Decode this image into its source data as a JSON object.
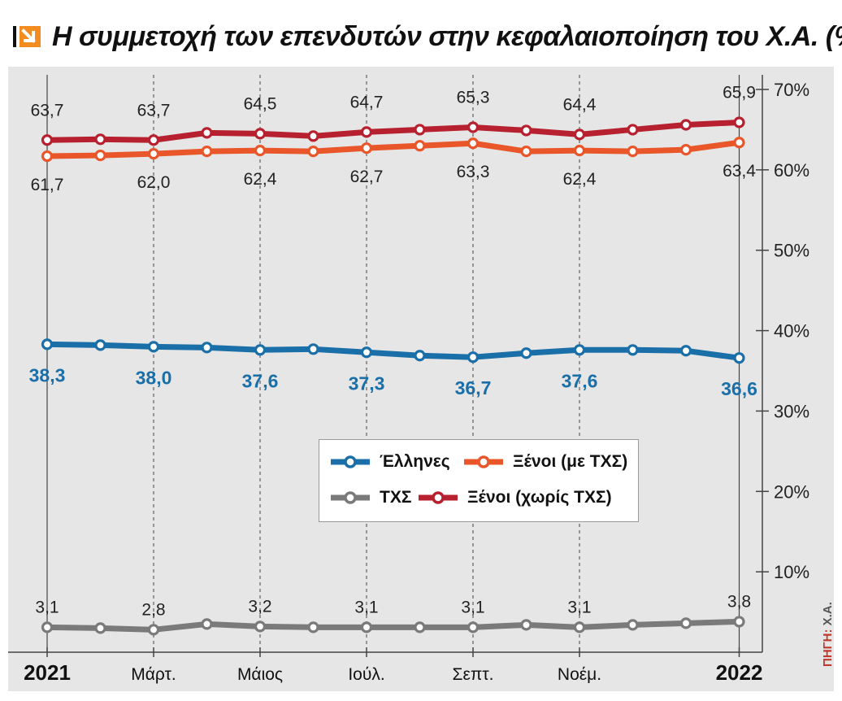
{
  "title": "Η συμμετοχή των επενδυτών στην κεφαλαιοποίηση του Χ.Α. (%)",
  "source": {
    "label": "ΠΗΓΗ:",
    "value": "Χ.Α."
  },
  "icon": "arrow-down-right-icon",
  "colors": {
    "greeks": "#1a6fa8",
    "foreign_with": "#e8562a",
    "foreign_without": "#b7212f",
    "txs": "#7a7a7a",
    "background": "#e6e6e6",
    "label_blue": "#1a6fa8",
    "title_icon": "#f28c1e"
  },
  "chart_data": {
    "type": "line",
    "title": "Η συμμετοχή των επενδυτών στην κεφαλαιοποίηση του Χ.Α. (%)",
    "ylim": [
      0,
      70
    ],
    "y_ticks": [
      "10%",
      "20%",
      "30%",
      "40%",
      "50%",
      "60%",
      "70%"
    ],
    "y_tick_values": [
      10,
      20,
      30,
      40,
      50,
      60,
      70
    ],
    "x_ticks": [
      {
        "index": 0,
        "label": "2021",
        "bold": true
      },
      {
        "index": 2,
        "label": "Μάρτ.",
        "bold": false
      },
      {
        "index": 4,
        "label": "Μάιος",
        "bold": false
      },
      {
        "index": 6,
        "label": "Ιούλ.",
        "bold": false
      },
      {
        "index": 8,
        "label": "Σεπτ.",
        "bold": false
      },
      {
        "index": 10,
        "label": "Νοέμ.",
        "bold": false
      },
      {
        "index": 13,
        "label": "2022",
        "bold": true
      }
    ],
    "grid": "vertical dashed at labeled months",
    "series": [
      {
        "name": "Ξένοι (χωρίς ΤΧΣ)",
        "key": "foreign_without",
        "values": [
          63.7,
          63.8,
          63.7,
          64.6,
          64.5,
          64.2,
          64.7,
          65.0,
          65.3,
          64.9,
          64.4,
          65.0,
          65.6,
          65.9
        ],
        "labels": [
          {
            "index": 0,
            "text": "63,7"
          },
          {
            "index": 2,
            "text": "63,7"
          },
          {
            "index": 4,
            "text": "64,5"
          },
          {
            "index": 6,
            "text": "64,7"
          },
          {
            "index": 8,
            "text": "65,3"
          },
          {
            "index": 10,
            "text": "64,4"
          },
          {
            "index": 13,
            "text": "65,9"
          }
        ]
      },
      {
        "name": "Ξένοι (με ΤΧΣ)",
        "key": "foreign_with",
        "values": [
          61.7,
          61.8,
          62.0,
          62.3,
          62.4,
          62.3,
          62.7,
          63.0,
          63.3,
          62.3,
          62.4,
          62.3,
          62.5,
          63.4
        ],
        "labels": [
          {
            "index": 0,
            "text": "61,7"
          },
          {
            "index": 2,
            "text": "62,0"
          },
          {
            "index": 4,
            "text": "62,4"
          },
          {
            "index": 6,
            "text": "62,7"
          },
          {
            "index": 8,
            "text": "63,3"
          },
          {
            "index": 10,
            "text": "62,4"
          },
          {
            "index": 13,
            "text": "63,4"
          }
        ]
      },
      {
        "name": "Έλληνες",
        "key": "greeks",
        "values": [
          38.3,
          38.2,
          38.0,
          37.9,
          37.6,
          37.7,
          37.3,
          36.9,
          36.7,
          37.2,
          37.6,
          37.6,
          37.5,
          36.6
        ],
        "labels": [
          {
            "index": 0,
            "text": "38,3"
          },
          {
            "index": 2,
            "text": "38,0"
          },
          {
            "index": 4,
            "text": "37,6"
          },
          {
            "index": 6,
            "text": "37,3"
          },
          {
            "index": 8,
            "text": "36,7"
          },
          {
            "index": 10,
            "text": "37,6"
          },
          {
            "index": 13,
            "text": "36,6"
          }
        ]
      },
      {
        "name": "ΤΧΣ",
        "key": "txs",
        "values": [
          3.1,
          3.0,
          2.8,
          3.5,
          3.2,
          3.1,
          3.1,
          3.1,
          3.1,
          3.4,
          3.1,
          3.4,
          3.6,
          3.8
        ],
        "labels": [
          {
            "index": 0,
            "text": "3,1"
          },
          {
            "index": 2,
            "text": "2,8"
          },
          {
            "index": 4,
            "text": "3,2"
          },
          {
            "index": 6,
            "text": "3,1"
          },
          {
            "index": 8,
            "text": "3,1"
          },
          {
            "index": 10,
            "text": "3,1"
          },
          {
            "index": 13,
            "text": "3,8"
          }
        ]
      }
    ],
    "legend": [
      {
        "label": "Έλληνες",
        "key": "greeks"
      },
      {
        "label": "Ξένοι (με ΤΧΣ)",
        "key": "foreign_with"
      },
      {
        "label": "ΤΧΣ",
        "key": "txs"
      },
      {
        "label": "Ξένοι (χωρίς ΤΧΣ)",
        "key": "foreign_without"
      }
    ]
  }
}
